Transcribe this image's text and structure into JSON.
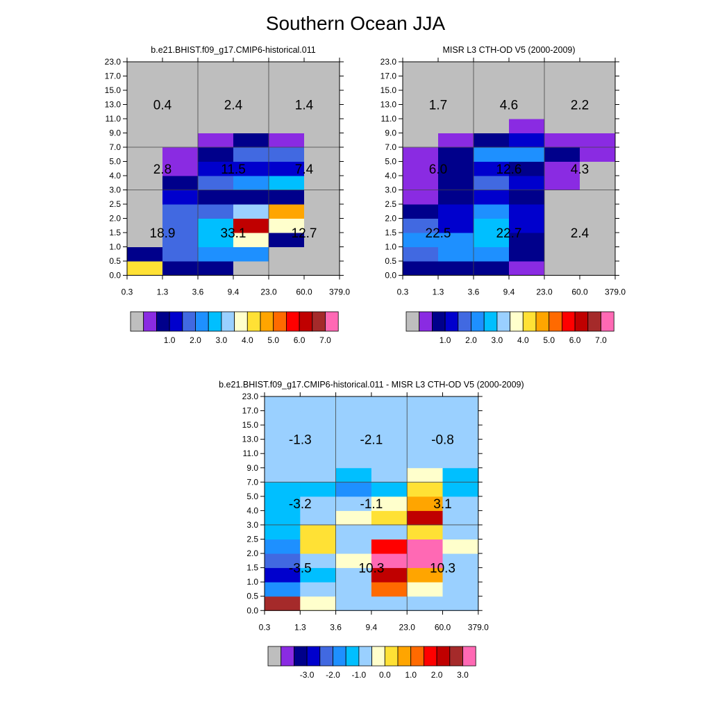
{
  "title": "Southern Ocean JJA",
  "cth_labels": [
    "0.0",
    "0.5",
    "1.0",
    "1.5",
    "2.0",
    "2.5",
    "3.0",
    "4.0",
    "5.0",
    "7.0",
    "9.0",
    "11.0",
    "13.0",
    "15.0",
    "17.0",
    "23.0"
  ],
  "od_labels": [
    "0.3",
    "1.3",
    "3.6",
    "9.4",
    "23.0",
    "60.0",
    "379.0"
  ],
  "chart_data": [
    {
      "type": "heatmap",
      "title": "b.e21.BHIST.f09_g17.CMIP6-historical.011",
      "x_bins": [
        "0.3",
        "1.3",
        "3.6",
        "9.4",
        "23.0",
        "60.0",
        "379.0"
      ],
      "y_bins": [
        "0.0",
        "0.5",
        "1.0",
        "1.5",
        "2.0",
        "2.5",
        "3.0",
        "4.0",
        "5.0",
        "7.0",
        "9.0",
        "11.0",
        "13.0",
        "15.0",
        "17.0",
        "23.0"
      ],
      "grid_levels": [
        [
          "#FFE135",
          "#00008B",
          "#00008B",
          "#BEBEBE",
          "#BEBEBE",
          "#BEBEBE"
        ],
        [
          "#00008B",
          "#4169E1",
          "#1E90FF",
          "#1E90FF",
          "#BEBEBE",
          "#BEBEBE"
        ],
        [
          "#BEBEBE",
          "#4169E1",
          "#00BFFF",
          "#FFFFCC",
          "#00008B",
          "#BEBEBE"
        ],
        [
          "#BEBEBE",
          "#4169E1",
          "#00BFFF",
          "#C00000",
          "#FFFFCC",
          "#BEBEBE"
        ],
        [
          "#BEBEBE",
          "#4169E1",
          "#4169E1",
          "#9AD0FF",
          "#FFA500",
          "#BEBEBE"
        ],
        [
          "#BEBEBE",
          "#0000CD",
          "#00008B",
          "#00008B",
          "#00008B",
          "#BEBEBE"
        ],
        [
          "#BEBEBE",
          "#00008B",
          "#4169E1",
          "#1E90FF",
          "#00BFFF",
          "#BEBEBE"
        ],
        [
          "#BEBEBE",
          "#8A2BE2",
          "#0000CD",
          "#0000CD",
          "#0000CD",
          "#BEBEBE"
        ],
        [
          "#BEBEBE",
          "#8A2BE2",
          "#00008B",
          "#4169E1",
          "#4169E1",
          "#BEBEBE"
        ],
        [
          "#BEBEBE",
          "#BEBEBE",
          "#8A2BE2",
          "#00008B",
          "#8A2BE2",
          "#BEBEBE"
        ],
        [
          "#BEBEBE",
          "#BEBEBE",
          "#BEBEBE",
          "#BEBEBE",
          "#BEBEBE",
          "#BEBEBE"
        ],
        [
          "#BEBEBE",
          "#BEBEBE",
          "#BEBEBE",
          "#BEBEBE",
          "#BEBEBE",
          "#BEBEBE"
        ],
        [
          "#BEBEBE",
          "#BEBEBE",
          "#BEBEBE",
          "#BEBEBE",
          "#BEBEBE",
          "#BEBEBE"
        ],
        [
          "#BEBEBE",
          "#BEBEBE",
          "#BEBEBE",
          "#BEBEBE",
          "#BEBEBE",
          "#BEBEBE"
        ],
        [
          "#BEBEBE",
          "#BEBEBE",
          "#BEBEBE",
          "#BEBEBE",
          "#BEBEBE",
          "#BEBEBE"
        ]
      ],
      "group_sums": [
        [
          "18.9",
          "33.1",
          "12.7"
        ],
        [
          "2.8",
          "11.5",
          "7.4"
        ],
        [
          "0.4",
          "2.4",
          "1.4"
        ]
      ],
      "colorbar_labels": [
        "1.0",
        "2.0",
        "3.0",
        "4.0",
        "5.0",
        "6.0",
        "7.0"
      ]
    },
    {
      "type": "heatmap",
      "title": "MISR L3 CTH-OD V5 (2000-2009)",
      "x_bins": [
        "0.3",
        "1.3",
        "3.6",
        "9.4",
        "23.0",
        "60.0",
        "379.0"
      ],
      "y_bins": [
        "0.0",
        "0.5",
        "1.0",
        "1.5",
        "2.0",
        "2.5",
        "3.0",
        "4.0",
        "5.0",
        "7.0",
        "9.0",
        "11.0",
        "13.0",
        "15.0",
        "17.0",
        "23.0"
      ],
      "grid_levels": [
        [
          "#00008B",
          "#00008B",
          "#00008B",
          "#8A2BE2",
          "#BEBEBE",
          "#BEBEBE"
        ],
        [
          "#4169E1",
          "#1E90FF",
          "#1E90FF",
          "#00008B",
          "#BEBEBE",
          "#BEBEBE"
        ],
        [
          "#1E90FF",
          "#1E90FF",
          "#00BFFF",
          "#00008B",
          "#BEBEBE",
          "#BEBEBE"
        ],
        [
          "#4169E1",
          "#0000CD",
          "#00BFFF",
          "#0000CD",
          "#BEBEBE",
          "#BEBEBE"
        ],
        [
          "#00008B",
          "#0000CD",
          "#1E90FF",
          "#0000CD",
          "#BEBEBE",
          "#BEBEBE"
        ],
        [
          "#8A2BE2",
          "#00008B",
          "#0000CD",
          "#00008B",
          "#BEBEBE",
          "#BEBEBE"
        ],
        [
          "#8A2BE2",
          "#00008B",
          "#4169E1",
          "#0000CD",
          "#8A2BE2",
          "#BEBEBE"
        ],
        [
          "#8A2BE2",
          "#00008B",
          "#0000CD",
          "#00008B",
          "#8A2BE2",
          "#BEBEBE"
        ],
        [
          "#8A2BE2",
          "#00008B",
          "#1E90FF",
          "#1E90FF",
          "#00008B",
          "#8A2BE2"
        ],
        [
          "#BEBEBE",
          "#8A2BE2",
          "#00008B",
          "#0000CD",
          "#8A2BE2",
          "#8A2BE2"
        ],
        [
          "#BEBEBE",
          "#BEBEBE",
          "#BEBEBE",
          "#8A2BE2",
          "#BEBEBE",
          "#BEBEBE"
        ],
        [
          "#BEBEBE",
          "#BEBEBE",
          "#BEBEBE",
          "#BEBEBE",
          "#BEBEBE",
          "#BEBEBE"
        ],
        [
          "#BEBEBE",
          "#BEBEBE",
          "#BEBEBE",
          "#BEBEBE",
          "#BEBEBE",
          "#BEBEBE"
        ],
        [
          "#BEBEBE",
          "#BEBEBE",
          "#BEBEBE",
          "#BEBEBE",
          "#BEBEBE",
          "#BEBEBE"
        ],
        [
          "#BEBEBE",
          "#BEBEBE",
          "#BEBEBE",
          "#BEBEBE",
          "#BEBEBE",
          "#BEBEBE"
        ]
      ],
      "group_sums": [
        [
          "22.5",
          "22.7",
          "2.4"
        ],
        [
          "6.0",
          "12.6",
          "4.3"
        ],
        [
          "1.7",
          "4.6",
          "2.2"
        ]
      ],
      "colorbar_labels": [
        "1.0",
        "2.0",
        "3.0",
        "4.0",
        "5.0",
        "6.0",
        "7.0"
      ]
    },
    {
      "type": "heatmap",
      "title": "b.e21.BHIST.f09_g17.CMIP6-historical.011 - MISR L3 CTH-OD V5 (2000-2009)",
      "x_bins": [
        "0.3",
        "1.3",
        "3.6",
        "9.4",
        "23.0",
        "60.0",
        "379.0"
      ],
      "y_bins": [
        "0.0",
        "0.5",
        "1.0",
        "1.5",
        "2.0",
        "2.5",
        "3.0",
        "4.0",
        "5.0",
        "7.0",
        "9.0",
        "11.0",
        "13.0",
        "15.0",
        "17.0",
        "23.0"
      ],
      "grid_levels": [
        [
          "#A52A2A",
          "#FFFFCC",
          "#9AD0FF",
          "#9AD0FF",
          "#9AD0FF",
          "#9AD0FF"
        ],
        [
          "#1E90FF",
          "#9AD0FF",
          "#9AD0FF",
          "#FF6A00",
          "#FFFFCC",
          "#9AD0FF"
        ],
        [
          "#0000CD",
          "#00BFFF",
          "#9AD0FF",
          "#C00000",
          "#FFA500",
          "#9AD0FF"
        ],
        [
          "#4169E1",
          "#9AD0FF",
          "#FFFFCC",
          "#FF69B4",
          "#FF69B4",
          "#9AD0FF"
        ],
        [
          "#1E90FF",
          "#FFE135",
          "#9AD0FF",
          "#FF0000",
          "#FF69B4",
          "#FFFFCC"
        ],
        [
          "#00BFFF",
          "#FFE135",
          "#9AD0FF",
          "#9AD0FF",
          "#FFE135",
          "#9AD0FF"
        ],
        [
          "#00BFFF",
          "#9AD0FF",
          "#FFFFCC",
          "#FFE135",
          "#C00000",
          "#9AD0FF"
        ],
        [
          "#00BFFF",
          "#9AD0FF",
          "#9AD0FF",
          "#FFFFCC",
          "#FFA500",
          "#9AD0FF"
        ],
        [
          "#00BFFF",
          "#00BFFF",
          "#1E90FF",
          "#00BFFF",
          "#FFE135",
          "#00BFFF"
        ],
        [
          "#9AD0FF",
          "#9AD0FF",
          "#00BFFF",
          "#9AD0FF",
          "#FFFFCC",
          "#00BFFF"
        ],
        [
          "#9AD0FF",
          "#9AD0FF",
          "#9AD0FF",
          "#9AD0FF",
          "#9AD0FF",
          "#9AD0FF"
        ],
        [
          "#9AD0FF",
          "#9AD0FF",
          "#9AD0FF",
          "#9AD0FF",
          "#9AD0FF",
          "#9AD0FF"
        ],
        [
          "#9AD0FF",
          "#9AD0FF",
          "#9AD0FF",
          "#9AD0FF",
          "#9AD0FF",
          "#9AD0FF"
        ],
        [
          "#9AD0FF",
          "#9AD0FF",
          "#9AD0FF",
          "#9AD0FF",
          "#9AD0FF",
          "#9AD0FF"
        ],
        [
          "#9AD0FF",
          "#9AD0FF",
          "#9AD0FF",
          "#9AD0FF",
          "#9AD0FF",
          "#9AD0FF"
        ]
      ],
      "group_sums": [
        [
          "-3.5",
          "10.3",
          "10.3"
        ],
        [
          "-3.2",
          "-1.1",
          "3.1"
        ],
        [
          "-1.3",
          "-2.1",
          "-0.8"
        ]
      ],
      "colorbar_labels": [
        "-3.0",
        "-2.0",
        "-1.0",
        "0.0",
        "1.0",
        "2.0",
        "3.0"
      ]
    }
  ],
  "colors": {
    "palette": [
      "#BEBEBE",
      "#8A2BE2",
      "#00008B",
      "#0000CD",
      "#4169E1",
      "#1E90FF",
      "#00BFFF",
      "#9AD0FF",
      "#FFFFCC",
      "#FFE135",
      "#FFA500",
      "#FF6A00",
      "#FF0000",
      "#C00000",
      "#A52A2A",
      "#FF69B4"
    ],
    "axis": "#000000",
    "grid_line": "#444444"
  }
}
